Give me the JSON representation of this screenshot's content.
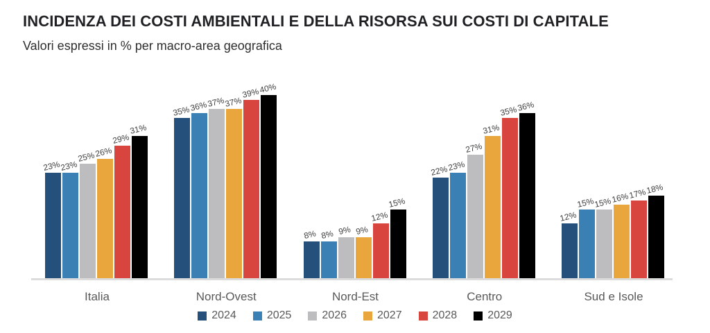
{
  "header": {
    "title": "INCIDENZA DEI COSTI AMBIENTALI E DELLA RISORSA SUI COSTI DI CAPITALE",
    "subtitle": "Valori espressi in % per macro-area geografica"
  },
  "chart_data": {
    "type": "bar",
    "title": "INCIDENZA DEI COSTI AMBIENTALI E DELLA RISORSA SUI COSTI DI CAPITALE",
    "subtitle": "Valori espressi in % per macro-area geografica",
    "categories": [
      "Italia",
      "Nord-Ovest",
      "Nord-Est",
      "Centro",
      "Sud e Isole"
    ],
    "series": [
      {
        "name": "2024",
        "color": "#25507B",
        "values": [
          23,
          35,
          8,
          22,
          12
        ]
      },
      {
        "name": "2025",
        "color": "#3A80B5",
        "values": [
          23,
          36,
          8,
          23,
          15
        ]
      },
      {
        "name": "2026",
        "color": "#BDBDBF",
        "values": [
          25,
          37,
          9,
          27,
          15
        ]
      },
      {
        "name": "2027",
        "color": "#E8A63D",
        "values": [
          26,
          37,
          9,
          31,
          16
        ]
      },
      {
        "name": "2028",
        "color": "#D8453F",
        "values": [
          29,
          39,
          12,
          35,
          17
        ]
      },
      {
        "name": "2029",
        "color": "#000000",
        "values": [
          31,
          40,
          15,
          36,
          18
        ]
      }
    ],
    "value_suffix": "%",
    "data_labels": true,
    "xlabel": "",
    "ylabel": "",
    "ylim": [
      0,
      42
    ],
    "grid": false,
    "y_axis_visible": false,
    "legend_position": "bottom"
  }
}
